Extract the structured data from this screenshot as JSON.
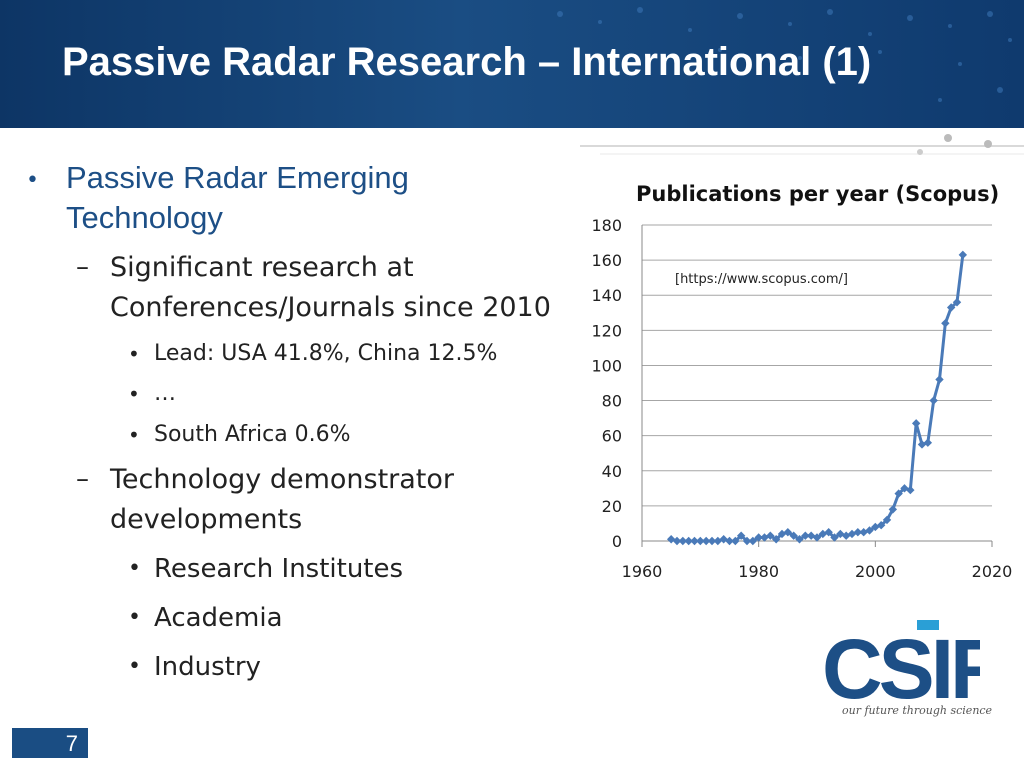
{
  "slide": {
    "title": "Passive Radar Research – International (1)",
    "page_number": "7"
  },
  "content": {
    "bullet1": "Passive Radar Emerging",
    "bullet1_cont": "Technology",
    "sub1": "Significant research at",
    "sub1_cont": "Conferences/Journals since 2010",
    "sub1_items": [
      "Lead: USA 41.8%, China 12.5%",
      "…",
      "South Africa 0.6%"
    ],
    "sub2": "Technology demonstrator",
    "sub2_cont": "developments",
    "sub2_items": [
      "Research Institutes",
      "Academia",
      "Industry"
    ]
  },
  "logo": {
    "text": "CSIR",
    "tagline": "our future through science"
  },
  "chart_data": {
    "type": "line",
    "title": "Publications per year (Scopus)",
    "annotation": "[https://www.scopus.com/]",
    "xlim": [
      1960,
      2020
    ],
    "ylim": [
      0,
      180
    ],
    "x_ticks": [
      1960,
      1980,
      2000,
      2020
    ],
    "y_ticks": [
      0,
      20,
      40,
      60,
      80,
      100,
      120,
      140,
      160,
      180
    ],
    "grid": true,
    "series_color": "#4a7ab8",
    "x": [
      1965,
      1966,
      1967,
      1968,
      1969,
      1970,
      1971,
      1972,
      1973,
      1974,
      1975,
      1976,
      1977,
      1978,
      1979,
      1980,
      1981,
      1982,
      1983,
      1984,
      1985,
      1986,
      1987,
      1988,
      1989,
      1990,
      1991,
      1992,
      1993,
      1994,
      1995,
      1996,
      1997,
      1998,
      1999,
      2000,
      2001,
      2002,
      2003,
      2004,
      2005,
      2006,
      2007,
      2008,
      2009,
      2010,
      2011,
      2012,
      2013,
      2014,
      2015
    ],
    "y": [
      1,
      0,
      0,
      0,
      0,
      0,
      0,
      0,
      0,
      1,
      0,
      0,
      3,
      0,
      0,
      2,
      2,
      3,
      1,
      4,
      5,
      3,
      1,
      3,
      3,
      2,
      4,
      5,
      2,
      4,
      3,
      4,
      5,
      5,
      6,
      8,
      9,
      12,
      18,
      27,
      30,
      29,
      67,
      55,
      56,
      80,
      92,
      124,
      133,
      136,
      163
    ]
  }
}
